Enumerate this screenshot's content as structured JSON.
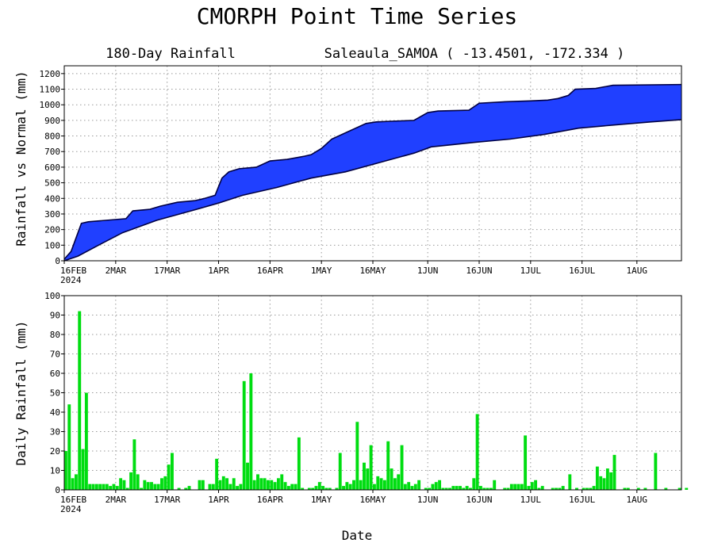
{
  "header": {
    "title": "CMORPH Point Time Series",
    "subtitle_left": "180-Day Rainfall",
    "subtitle_right": "Saleaula_SAMOA ( -13.4501, -172.334 )",
    "x_axis_title": "Date"
  },
  "colors": {
    "band_fill": "#2040ff",
    "band_edge": "#000044",
    "bar_fill": "#00dd11"
  },
  "chart_data": [
    {
      "type": "area",
      "title": "",
      "ylabel": "Rainfall vs Normal (mm)",
      "xlabel": "",
      "ylim": [
        0,
        1250
      ],
      "yticks": [
        0,
        100,
        200,
        300,
        400,
        500,
        600,
        700,
        800,
        900,
        1000,
        1100,
        1200
      ],
      "xlim": [
        "2024-02-16",
        "2024-08-14"
      ],
      "xticks": [
        "2024-02-16",
        "2024-03-02",
        "2024-03-17",
        "2024-04-01",
        "2024-04-16",
        "2024-05-01",
        "2024-05-16",
        "2024-06-01",
        "2024-06-16",
        "2024-07-01",
        "2024-07-16",
        "2024-08-01"
      ],
      "xtick_labels": [
        "16FEB",
        "2MAR",
        "17MAR",
        "1APR",
        "16APR",
        "1MAY",
        "16MAY",
        "1JUN",
        "16JUN",
        "1JUL",
        "16JUL",
        "1AUG"
      ],
      "year_label": "2024",
      "grid": true,
      "series": [
        {
          "name": "",
          "description": "upper edge of band (actual accumulated rainfall)",
          "x": [
            "2024-02-16",
            "2024-02-18",
            "2024-02-20",
            "2024-02-21",
            "2024-02-23",
            "2024-03-05",
            "2024-03-07",
            "2024-03-12",
            "2024-03-15",
            "2024-03-20",
            "2024-03-25",
            "2024-03-28",
            "2024-03-31",
            "2024-04-02",
            "2024-04-04",
            "2024-04-07",
            "2024-04-12",
            "2024-04-16",
            "2024-04-21",
            "2024-04-26",
            "2024-04-28",
            "2024-05-01",
            "2024-05-04",
            "2024-05-08",
            "2024-05-14",
            "2024-05-17",
            "2024-05-22",
            "2024-05-28",
            "2024-06-01",
            "2024-06-04",
            "2024-06-13",
            "2024-06-16",
            "2024-06-24",
            "2024-07-01",
            "2024-07-06",
            "2024-07-09",
            "2024-07-12",
            "2024-07-14",
            "2024-07-20",
            "2024-07-25",
            "2024-08-14"
          ],
          "values": [
            10,
            60,
            180,
            240,
            250,
            270,
            320,
            330,
            350,
            375,
            385,
            400,
            420,
            530,
            570,
            590,
            600,
            640,
            650,
            670,
            680,
            720,
            780,
            820,
            880,
            890,
            895,
            900,
            950,
            960,
            965,
            1010,
            1020,
            1025,
            1030,
            1040,
            1060,
            1100,
            1105,
            1125,
            1130
          ]
        },
        {
          "name": "",
          "description": "lower edge of band (normal accumulated rainfall)",
          "x": [
            "2024-02-16",
            "2024-02-20",
            "2024-02-26",
            "2024-03-04",
            "2024-03-14",
            "2024-03-24",
            "2024-04-01",
            "2024-04-08",
            "2024-04-18",
            "2024-04-28",
            "2024-05-08",
            "2024-05-18",
            "2024-05-28",
            "2024-06-02",
            "2024-06-15",
            "2024-06-25",
            "2024-07-05",
            "2024-07-15",
            "2024-07-25",
            "2024-08-05",
            "2024-08-14"
          ],
          "values": [
            0,
            30,
            100,
            180,
            260,
            320,
            370,
            420,
            470,
            530,
            570,
            630,
            690,
            730,
            760,
            780,
            810,
            850,
            870,
            890,
            905
          ]
        }
      ]
    },
    {
      "type": "bar",
      "title": "",
      "ylabel": "Daily Rainfall (mm)",
      "xlabel": "Date",
      "ylim": [
        0,
        100
      ],
      "yticks": [
        0,
        10,
        20,
        30,
        40,
        50,
        60,
        70,
        80,
        90,
        100
      ],
      "xlim": [
        "2024-02-16",
        "2024-08-14"
      ],
      "xticks": [
        "2024-02-16",
        "2024-03-02",
        "2024-03-17",
        "2024-04-01",
        "2024-04-16",
        "2024-05-01",
        "2024-05-16",
        "2024-06-01",
        "2024-06-16",
        "2024-07-01",
        "2024-07-16",
        "2024-08-01"
      ],
      "xtick_labels": [
        "16FEB",
        "2MAR",
        "17MAR",
        "1APR",
        "16APR",
        "1MAY",
        "16MAY",
        "1JUN",
        "16JUN",
        "1JUL",
        "16JUL",
        "1AUG"
      ],
      "year_label": "2024",
      "grid": true,
      "x_start": "2024-02-16",
      "values": [
        20,
        44,
        6,
        8,
        92,
        21,
        50,
        3,
        3,
        3,
        3,
        3,
        3,
        2,
        3,
        2,
        6,
        5,
        1,
        9,
        26,
        8,
        1,
        5,
        4,
        4,
        3,
        3,
        6,
        7,
        13,
        19,
        0,
        1,
        0,
        1,
        2,
        0,
        0,
        5,
        5,
        0,
        3,
        3,
        16,
        5,
        7,
        6,
        3,
        6,
        2,
        3,
        56,
        14,
        60,
        5,
        8,
        6,
        6,
        5,
        5,
        4,
        6,
        8,
        4,
        2,
        3,
        3,
        27,
        1,
        0,
        1,
        1,
        2,
        4,
        2,
        1,
        1,
        0,
        1,
        19,
        2,
        4,
        3,
        5,
        35,
        5,
        14,
        11,
        23,
        3,
        7,
        6,
        5,
        25,
        11,
        6,
        8,
        23,
        3,
        4,
        2,
        3,
        5,
        0,
        1,
        1,
        3,
        4,
        5,
        1,
        1,
        1,
        2,
        2,
        2,
        1,
        2,
        1,
        6,
        39,
        2,
        1,
        1,
        1,
        5,
        0,
        0,
        1,
        1,
        3,
        3,
        3,
        3,
        28,
        2,
        4,
        5,
        1,
        2,
        0,
        0,
        1,
        1,
        1,
        2,
        0,
        8,
        0,
        1,
        0,
        1,
        1,
        1,
        2,
        12,
        7,
        6,
        11,
        9,
        18,
        0,
        0,
        1,
        1,
        0,
        0,
        1,
        0,
        1,
        0,
        0,
        19,
        0,
        0,
        1,
        0,
        0,
        0,
        1,
        0,
        1
      ]
    }
  ]
}
